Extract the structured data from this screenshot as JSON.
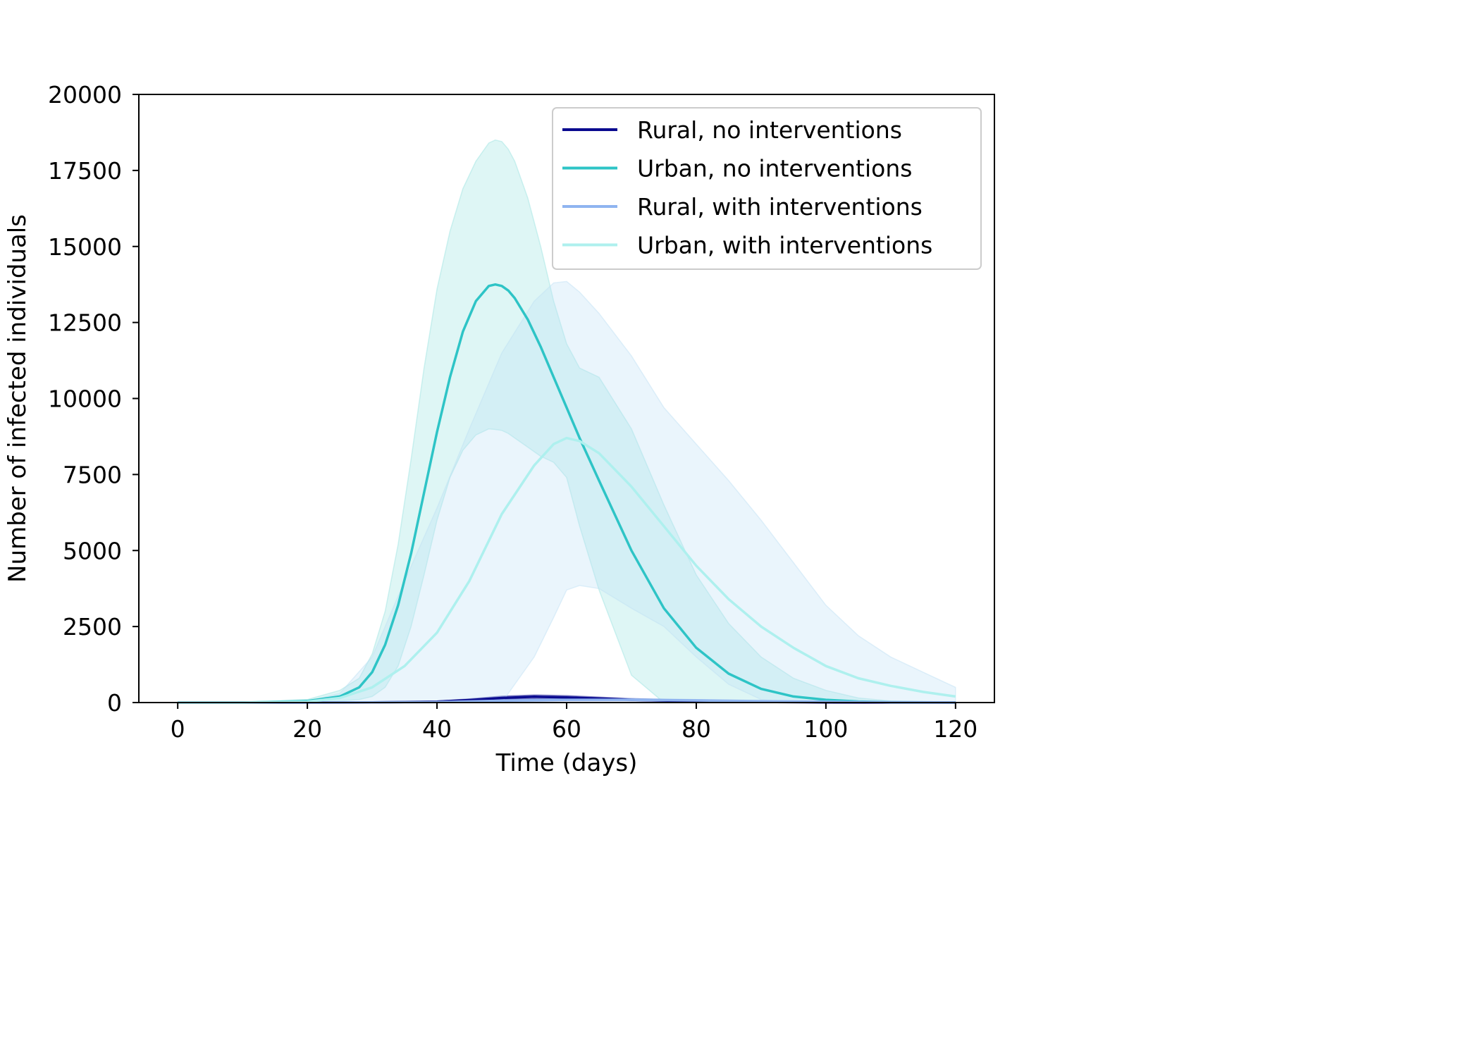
{
  "chart_data": {
    "type": "line",
    "xlabel": "Time (days)",
    "ylabel": "Number of infected individuals",
    "xlim": [
      -6,
      126
    ],
    "ylim": [
      0,
      20000
    ],
    "x_ticks": [
      "0",
      "20",
      "40",
      "60",
      "80",
      "100",
      "120"
    ],
    "y_ticks": [
      "0",
      "2500",
      "5000",
      "7500",
      "10000",
      "12500",
      "15000",
      "17500",
      "20000"
    ],
    "legend_position": "top-right",
    "grid": false,
    "series": [
      {
        "name": "Rural, no interventions",
        "color": "#0a0a8f",
        "band_color": "#0a0a8f",
        "x": [
          0,
          20,
          30,
          40,
          45,
          50,
          55,
          60,
          65,
          70,
          80,
          90,
          100,
          110,
          120
        ],
        "y": [
          0,
          0,
          5,
          30,
          80,
          150,
          190,
          170,
          130,
          90,
          45,
          20,
          8,
          3,
          1
        ],
        "lower": [
          0,
          0,
          2,
          15,
          50,
          100,
          120,
          110,
          90,
          60,
          30,
          12,
          5,
          2,
          0
        ],
        "upper": [
          0,
          0,
          10,
          50,
          120,
          210,
          250,
          230,
          180,
          130,
          70,
          35,
          15,
          6,
          2
        ]
      },
      {
        "name": "Urban, no interventions",
        "color": "#2ec4c6",
        "band_color": "#98e2e0",
        "x": [
          0,
          10,
          20,
          25,
          28,
          30,
          32,
          34,
          36,
          38,
          40,
          42,
          44,
          46,
          48,
          49,
          50,
          51,
          52,
          54,
          56,
          58,
          60,
          62,
          65,
          70,
          75,
          80,
          85,
          90,
          95,
          100,
          105,
          110,
          120
        ],
        "y": [
          0,
          0,
          50,
          200,
          500,
          1000,
          1900,
          3200,
          4900,
          6900,
          8900,
          10700,
          12200,
          13200,
          13700,
          13750,
          13700,
          13550,
          13300,
          12600,
          11700,
          10700,
          9700,
          8700,
          7300,
          5000,
          3100,
          1800,
          950,
          450,
          200,
          90,
          35,
          12,
          2
        ],
        "lower": [
          0,
          0,
          10,
          50,
          100,
          200,
          500,
          1200,
          2500,
          4200,
          6000,
          7400,
          8300,
          8800,
          9000,
          8980,
          8950,
          8850,
          8700,
          8400,
          8100,
          7900,
          7400,
          5800,
          3700,
          900,
          0,
          0,
          0,
          0,
          0,
          0,
          0,
          0,
          0
        ],
        "upper": [
          0,
          0,
          100,
          400,
          800,
          1600,
          3000,
          5200,
          8000,
          11000,
          13600,
          15500,
          16900,
          17800,
          18400,
          18500,
          18450,
          18200,
          17800,
          16600,
          15000,
          13200,
          11800,
          11000,
          10700,
          9000,
          6500,
          4200,
          2600,
          1500,
          800,
          400,
          150,
          50,
          0
        ]
      },
      {
        "name": "Rural, with interventions",
        "color": "#8fb4f0",
        "band_color": "#8fb4f0",
        "x": [
          0,
          20,
          40,
          50,
          60,
          70,
          80,
          90,
          100,
          110,
          120
        ],
        "y": [
          0,
          0,
          15,
          60,
          90,
          90,
          70,
          45,
          25,
          12,
          5
        ],
        "lower": [
          0,
          0,
          5,
          30,
          55,
          55,
          40,
          25,
          12,
          5,
          2
        ],
        "upper": [
          0,
          0,
          25,
          90,
          130,
          130,
          100,
          70,
          40,
          20,
          8
        ]
      },
      {
        "name": "Urban, with interventions",
        "color": "#aef0ee",
        "band_color": "#bfe0f5",
        "x": [
          0,
          10,
          20,
          25,
          30,
          35,
          40,
          45,
          50,
          55,
          58,
          60,
          62,
          65,
          70,
          75,
          80,
          85,
          90,
          95,
          100,
          105,
          110,
          115,
          120
        ],
        "y": [
          0,
          0,
          30,
          150,
          500,
          1200,
          2300,
          4000,
          6200,
          7800,
          8500,
          8700,
          8600,
          8200,
          7100,
          5800,
          4500,
          3400,
          2500,
          1800,
          1200,
          800,
          550,
          350,
          200
        ],
        "lower": [
          0,
          0,
          0,
          0,
          0,
          0,
          0,
          0,
          0,
          1500,
          2800,
          3700,
          3850,
          3750,
          3100,
          2500,
          1500,
          600,
          100,
          0,
          0,
          0,
          0,
          0,
          0
        ],
        "upper": [
          0,
          0,
          50,
          300,
          1500,
          4000,
          6400,
          9000,
          11500,
          13200,
          13800,
          13850,
          13500,
          12800,
          11400,
          9700,
          8500,
          7300,
          6000,
          4600,
          3200,
          2200,
          1500,
          1000,
          500
        ]
      }
    ]
  }
}
